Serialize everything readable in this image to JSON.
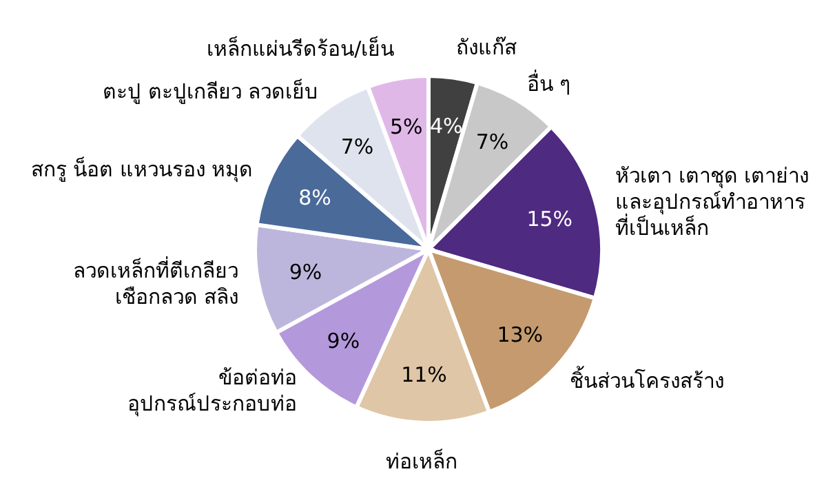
{
  "chart_data": {
    "type": "pie",
    "categories": [
      "ถังแก๊ส",
      "อื่น ๆ",
      "หัวเตา เตาชุด เตาย่าง\nและอุปกรณ์ทำอาหาร\nที่เป็นเหล็ก",
      "ชิ้นส่วนโครงสร้าง",
      "ท่อเหล็ก",
      "ข้อต่อท่อ\nอุปกรณ์ประกอบท่อ",
      "ลวดเหล็กที่ตีเกลียว\nเชือกลวด สลิง",
      "สกรู น็อต แหวนรอง หมุด",
      "ตะปู ตะปูเกลียว ลวดเย็บ",
      "เหล็กแผ่นรีดร้อน/เย็น"
    ],
    "values": [
      4,
      7,
      15,
      13,
      11,
      9,
      9,
      8,
      7,
      5
    ],
    "value_labels": [
      "4%",
      "7%",
      "15%",
      "13%",
      "11%",
      "9%",
      "9%",
      "8%",
      "7%",
      "5%"
    ],
    "colors": [
      "#404040",
      "#c8c8c8",
      "#4e2a80",
      "#c49a6e",
      "#dfc6a6",
      "#b498dc",
      "#bdb6dc",
      "#4a6a9a",
      "#dfe3ee",
      "#e0b8e8"
    ]
  }
}
